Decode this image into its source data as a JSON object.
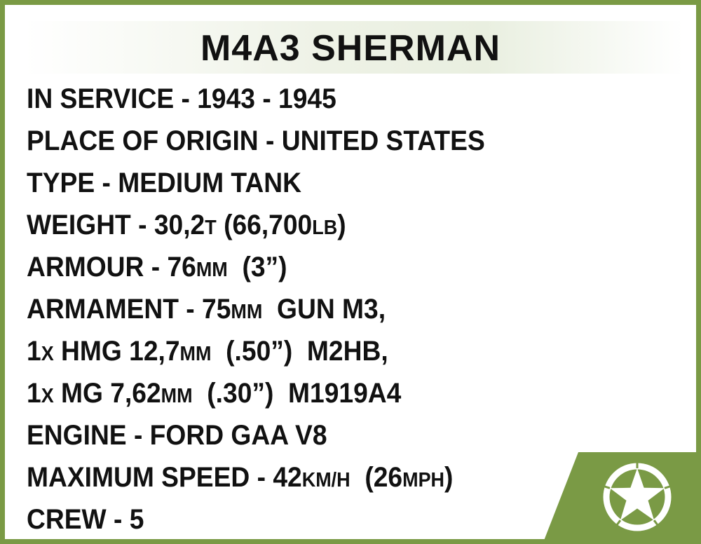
{
  "title": "M4A3 SHERMAN",
  "lines": [
    [
      {
        "t": "IN SERVICE - 1943 - 1945"
      }
    ],
    [
      {
        "t": "PLACE OF ORIGIN - UNITED STATES"
      }
    ],
    [
      {
        "t": "TYPE - MEDIUM TANK"
      }
    ],
    [
      {
        "t": "WEIGHT - 30,2"
      },
      {
        "t": "T",
        "small": true
      },
      {
        "t": " (66,700"
      },
      {
        "t": "LB",
        "small": true
      },
      {
        "t": ")"
      }
    ],
    [
      {
        "t": "ARMOUR - 76"
      },
      {
        "t": "MM",
        "small": true
      },
      {
        "t": "  (3”)"
      }
    ],
    [
      {
        "t": "ARMAMENT - 75"
      },
      {
        "t": "MM",
        "small": true
      },
      {
        "t": "  GUN M3,"
      }
    ],
    [
      {
        "t": "1"
      },
      {
        "t": "X",
        "small": true
      },
      {
        "t": " HMG 12,7"
      },
      {
        "t": "MM",
        "small": true
      },
      {
        "t": "  (.50”)  M2HB,"
      }
    ],
    [
      {
        "t": "1"
      },
      {
        "t": "X",
        "small": true
      },
      {
        "t": " MG 7,62"
      },
      {
        "t": "MM",
        "small": true
      },
      {
        "t": "  (.30”)  M1919A4"
      }
    ],
    [
      {
        "t": "ENGINE - FORD GAA V8"
      }
    ],
    [
      {
        "t": "MAXIMUM SPEED - 42"
      },
      {
        "t": "KM/H",
        "small": true
      },
      {
        "t": "  (26"
      },
      {
        "t": "MPH",
        "small": true
      },
      {
        "t": ")"
      }
    ],
    [
      {
        "t": "CREW - 5"
      }
    ]
  ],
  "colors": {
    "frame": "#7a9a45",
    "text": "#111111"
  },
  "emblem": "us-army-star-icon"
}
